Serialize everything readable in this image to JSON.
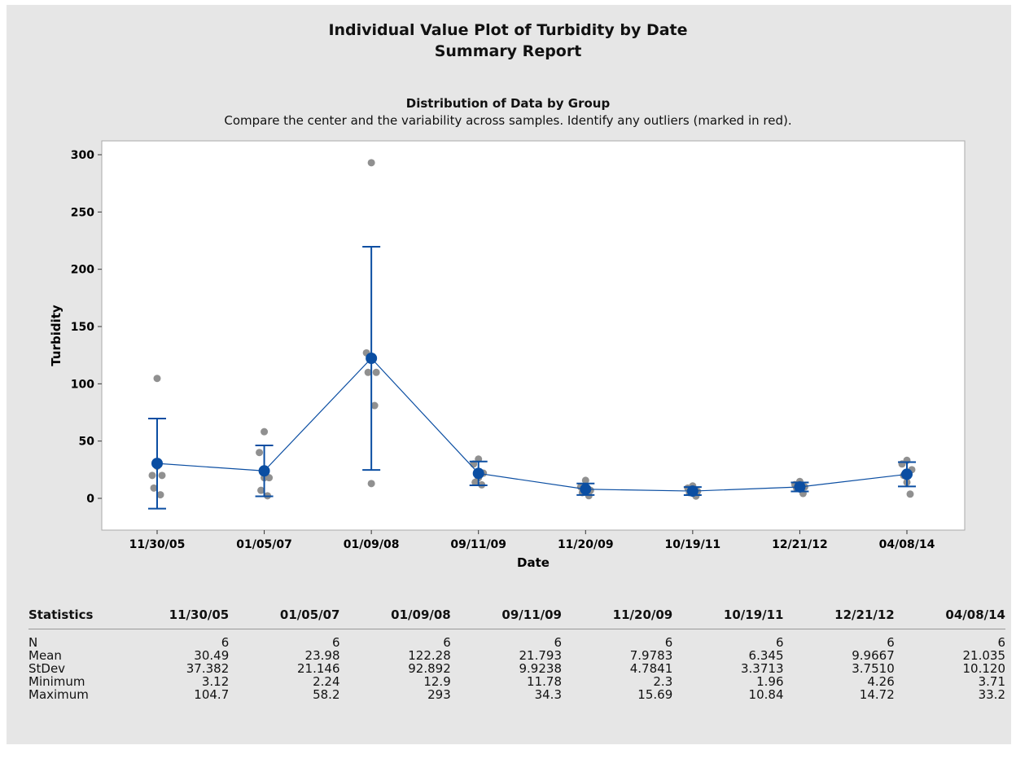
{
  "report": {
    "title": "Individual Value Plot of Turbidity by Date",
    "subtitle": "Summary Report"
  },
  "chart_data": {
    "type": "scatter",
    "title": "Distribution of Data by Group",
    "subtitle": "Compare the center and the variability across samples. Identify any outliers (marked in red).",
    "xlabel": "Date",
    "ylabel": "Turbidity",
    "ylim": [
      -25,
      310
    ],
    "yticks": [
      0,
      50,
      100,
      150,
      200,
      250,
      300
    ],
    "categories": [
      "11/30/05",
      "01/05/07",
      "01/09/08",
      "09/11/09",
      "11/20/09",
      "10/19/11",
      "12/21/12",
      "04/08/14"
    ],
    "points": [
      [
        104.7,
        20,
        20,
        9,
        3.12,
        28
      ],
      [
        58.2,
        40,
        18,
        7,
        2.24,
        18
      ],
      [
        293,
        127,
        110,
        110,
        81,
        12.9
      ],
      [
        34.3,
        30,
        22,
        14,
        11.78,
        18
      ],
      [
        15.69,
        10,
        7,
        5,
        2.3,
        8
      ],
      [
        10.84,
        9,
        6,
        5,
        1.96,
        5
      ],
      [
        14.72,
        12,
        10,
        9,
        4.26,
        9
      ],
      [
        33.2,
        30,
        25,
        20,
        3.71,
        14
      ]
    ],
    "means": [
      30.49,
      23.98,
      122.28,
      21.793,
      7.9783,
      6.345,
      9.9667,
      21.035
    ],
    "ci_low": [
      -9.0,
      1.8,
      24.8,
      11.4,
      2.96,
      2.81,
      6.03,
      10.42
    ],
    "ci_high": [
      69.7,
      46.2,
      219.7,
      32.2,
      13.0,
      9.88,
      13.9,
      31.65
    ],
    "point_color": "#909090",
    "mean_color": "#0b4ea2",
    "grid": false
  },
  "stats": {
    "header": "Statistics",
    "columns": [
      "11/30/05",
      "01/05/07",
      "01/09/08",
      "09/11/09",
      "11/20/09",
      "10/19/11",
      "12/21/12",
      "04/08/14"
    ],
    "rows": [
      {
        "label": "N",
        "values": [
          "6",
          "6",
          "6",
          "6",
          "6",
          "6",
          "6",
          "6"
        ]
      },
      {
        "label": "Mean",
        "values": [
          "30.49",
          "23.98",
          "122.28",
          "21.793",
          "7.9783",
          "6.345",
          "9.9667",
          "21.035"
        ]
      },
      {
        "label": "StDev",
        "values": [
          "37.382",
          "21.146",
          "92.892",
          "9.9238",
          "4.7841",
          "3.3713",
          "3.7510",
          "10.120"
        ]
      },
      {
        "label": "Minimum",
        "values": [
          "3.12",
          "2.24",
          "12.9",
          "11.78",
          "2.3",
          "1.96",
          "4.26",
          "3.71"
        ]
      },
      {
        "label": "Maximum",
        "values": [
          "104.7",
          "58.2",
          "293",
          "34.3",
          "15.69",
          "10.84",
          "14.72",
          "33.2"
        ]
      }
    ]
  }
}
